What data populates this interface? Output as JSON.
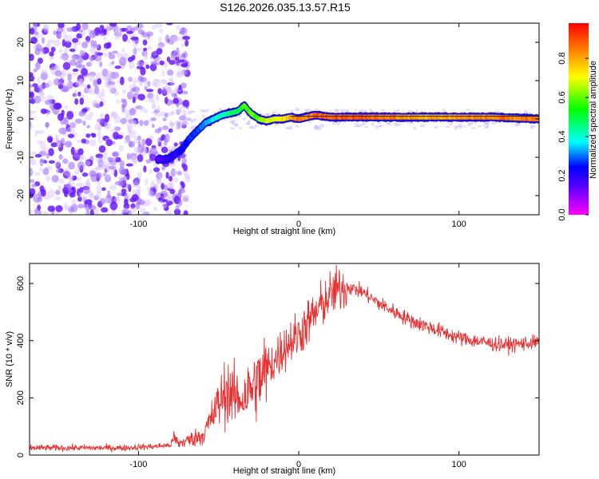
{
  "figure_title": "S126.2026.035.13.57.R15",
  "chart_data": [
    {
      "type": "heatmap",
      "title": "S126.2026.035.13.57.R15",
      "xlabel": "Height of straight line (km)",
      "ylabel": "Frequency (Hz)",
      "xlim": [
        -168,
        150
      ],
      "ylim": [
        -25,
        25
      ],
      "x_ticks": [
        -100,
        0,
        100
      ],
      "y_ticks": [
        -20,
        -10,
        0,
        10,
        20
      ],
      "colorbar": {
        "label": "Normalized spectral amplitude",
        "range": [
          0,
          0.98
        ],
        "ticks": [
          0.0,
          0.2,
          0.4,
          0.6,
          0.8
        ],
        "colormap": [
          "#ff00ff",
          "#5500ff",
          "#0000ff",
          "#00ffff",
          "#00ff00",
          "#ffff00",
          "#ff0000"
        ]
      },
      "noise_region_x": [
        -168,
        -73
      ],
      "track": {
        "x": [
          -88,
          -82,
          -78,
          -73,
          -68,
          -63,
          -58,
          -53,
          -48,
          -43,
          -38,
          -34,
          -30,
          -25,
          -20,
          -15,
          -10,
          -5,
          0,
          10,
          20,
          40,
          60,
          80,
          100,
          120,
          150
        ],
        "y": [
          -10.5,
          -10.5,
          -9.5,
          -8,
          -5,
          -3,
          -1,
          0,
          1,
          1.5,
          2,
          3.5,
          1.5,
          0,
          -0.5,
          0,
          0,
          0.5,
          0,
          1,
          0.5,
          0.5,
          0.5,
          0.5,
          0.5,
          0.5,
          0
        ],
        "amp": [
          0.15,
          0.2,
          0.22,
          0.25,
          0.28,
          0.3,
          0.35,
          0.4,
          0.45,
          0.5,
          0.55,
          0.6,
          0.62,
          0.65,
          0.7,
          0.75,
          0.8,
          0.85,
          0.9,
          0.92,
          0.95,
          0.95,
          0.9,
          0.85,
          0.88,
          0.9,
          0.9
        ]
      }
    },
    {
      "type": "line",
      "xlabel": "Height of straight line (km)",
      "ylabel": "SNR (10 * v/v)",
      "xlim": [
        -168,
        150
      ],
      "ylim": [
        0,
        670
      ],
      "x_ticks": [
        -100,
        0,
        100
      ],
      "y_ticks": [
        0,
        200,
        400,
        600
      ],
      "series": [
        {
          "name": "SNR",
          "color": "#e83030",
          "x": [
            -168,
            -140,
            -110,
            -90,
            -80,
            -78,
            -75,
            -70,
            -60,
            -55,
            -50,
            -45,
            -40,
            -35,
            -30,
            -25,
            -20,
            -15,
            -10,
            -5,
            0,
            5,
            10,
            15,
            20,
            25,
            30,
            35,
            40,
            50,
            60,
            70,
            80,
            90,
            100,
            110,
            120,
            130,
            140,
            150
          ],
          "values": [
            25,
            25,
            25,
            30,
            35,
            60,
            40,
            50,
            70,
            120,
            180,
            230,
            200,
            200,
            230,
            260,
            300,
            330,
            370,
            400,
            420,
            460,
            490,
            530,
            560,
            580,
            590,
            580,
            570,
            530,
            500,
            470,
            450,
            430,
            410,
            400,
            390,
            385,
            390,
            395
          ]
        }
      ]
    }
  ]
}
